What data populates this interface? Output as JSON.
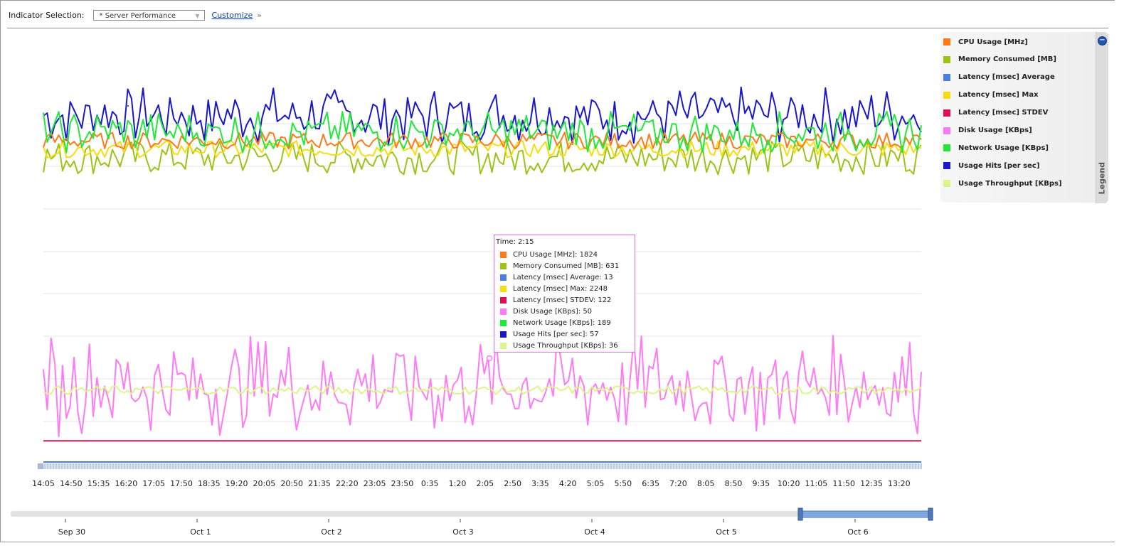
{
  "toolbar": {
    "indicator_label": "Indicator Selection:",
    "indicator_value": "* Server Performance",
    "customize_link": "Customize",
    "more_glyph": "»"
  },
  "legend": {
    "tab_label": "Legend",
    "collapse_glyph": "−",
    "items": [
      {
        "label": "CPU Usage [MHz]",
        "color": "#ff7a1a"
      },
      {
        "label": "Memory Consumed [MB]",
        "color": "#9cc418"
      },
      {
        "label": "Latency [msec] Average",
        "color": "#4a7fe0"
      },
      {
        "label": "Latency [msec] Max",
        "color": "#f5dd10"
      },
      {
        "label": "Latency [msec] STDEV",
        "color": "#e0104e"
      },
      {
        "label": "Disk Usage [KBps]",
        "color": "#ff7af5"
      },
      {
        "label": "Network Usage [KBps]",
        "color": "#22e83a"
      },
      {
        "label": "Usage Hits [per sec]",
        "color": "#1a18c8"
      },
      {
        "label": "Usage Throughput [KBps]",
        "color": "#dcf58a"
      }
    ]
  },
  "tooltip": {
    "time": "Time: 2:15",
    "rows": [
      {
        "text": "CPU Usage [MHz]: 1824",
        "color": "#ff7a1a"
      },
      {
        "text": "Memory Consumed [MB]: 631",
        "color": "#9cc418"
      },
      {
        "text": "Latency [msec] Average: 13",
        "color": "#4a7fe0"
      },
      {
        "text": "Latency [msec] Max: 2248",
        "color": "#f5dd10"
      },
      {
        "text": "Latency [msec] STDEV: 122",
        "color": "#e0104e"
      },
      {
        "text": "Disk Usage [KBps]: 50",
        "color": "#ff7af5"
      },
      {
        "text": "Network Usage [KBps]: 189",
        "color": "#22e83a"
      },
      {
        "text": "Usage Hits [per sec]: 57",
        "color": "#1a18c8"
      },
      {
        "text": "Usage Throughput [KBps]: 36",
        "color": "#dcf58a"
      }
    ]
  },
  "chart_data": {
    "type": "line",
    "x_tick_labels": [
      "14:05",
      "14:50",
      "15:35",
      "16:20",
      "17:05",
      "17:50",
      "18:35",
      "19:20",
      "20:05",
      "20:50",
      "21:35",
      "22:20",
      "23:05",
      "23:50",
      "0:35",
      "1:20",
      "2:05",
      "2:50",
      "3:35",
      "4:20",
      "5:05",
      "5:50",
      "6:35",
      "7:20",
      "8:05",
      "8:50",
      "9:35",
      "10:20",
      "11:05",
      "11:50",
      "12:35",
      "13:20"
    ],
    "date_labels": [
      "Sep 30",
      "Oct 1",
      "Oct 2",
      "Oct 3",
      "Oct 4",
      "Oct 5",
      "Oct 6"
    ],
    "grid": true,
    "legend_position": "right",
    "series": [
      {
        "name": "Usage Hits [per sec]",
        "color": "#1a18c8",
        "level": 0.82,
        "amplitude": 0.07,
        "pattern": "spiky"
      },
      {
        "name": "Memory Consumed [MB]",
        "color": "#9cc418",
        "level": 0.72,
        "amplitude": 0.04,
        "pattern": "noisy"
      },
      {
        "name": "Latency [msec] Max",
        "color": "#f5dd10",
        "level": 0.74,
        "amplitude": 0.02,
        "pattern": "noisy"
      },
      {
        "name": "CPU Usage [MHz]",
        "color": "#ff7a1a",
        "level": 0.76,
        "amplitude": 0.02,
        "pattern": "noisy"
      },
      {
        "name": "Network Usage [KBps]",
        "color": "#22e83a",
        "level": 0.78,
        "amplitude": 0.05,
        "pattern": "spiky"
      },
      {
        "name": "Disk Usage [KBps]",
        "color": "#ff7af5",
        "level": 0.18,
        "amplitude": 0.12,
        "pattern": "spiky"
      },
      {
        "name": "Usage Throughput [KBps]",
        "color": "#dcf58a",
        "level": 0.17,
        "amplitude": 0.01,
        "pattern": "noisy"
      },
      {
        "name": "Latency [msec] STDEV",
        "color": "#e0104e",
        "level": 0.05,
        "amplitude": 0.001,
        "pattern": "flat"
      },
      {
        "name": "Latency [msec] Average",
        "color": "#4a7fe0",
        "level": 0.0,
        "amplitude": 0.0,
        "pattern": "flat"
      }
    ],
    "hover_point": {
      "time": "2:15",
      "series": "Disk Usage [KBps]",
      "value": 50
    }
  }
}
